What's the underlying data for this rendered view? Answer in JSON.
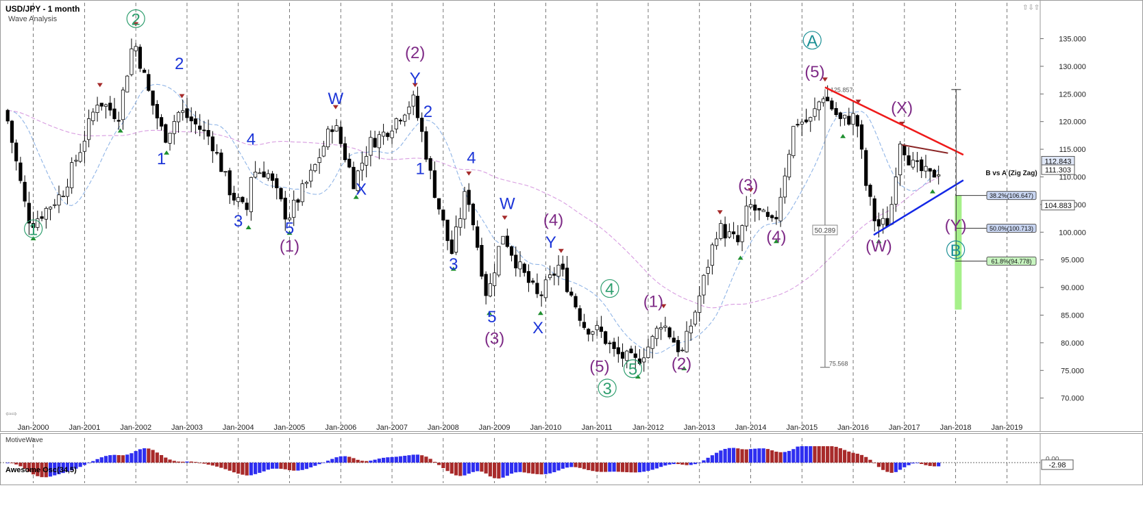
{
  "header": {
    "title": "USD/JPY - 1 month",
    "subtitle": "Wave Analysis",
    "oscillator_title": "Awesome Osc(34,5)",
    "brand": "MotiveWave"
  },
  "colors": {
    "bull_candle": "#ffffff",
    "bear_candle": "#000000",
    "ma_fast": "#8fb4e6",
    "ma_slow": "#d79be0",
    "ma_dash": "#c7b98a",
    "wave_blue": "#1c35d8",
    "wave_purple": "#7e2a86",
    "wave_green": "#2e9e6e",
    "wave_teal": "#1a8f94",
    "trend_red": "#ee1b1b",
    "trend_blue": "#1428e6",
    "trend_darkred": "#8a2525",
    "osc_up": "#2e2ef0",
    "osc_down": "#a82a2a",
    "target_zone": "#a6f08a"
  },
  "chart_data": {
    "type": "candlestick",
    "title": "USD/JPY - 1 month",
    "ylim": [
      66,
      141
    ],
    "y_ticks": [
      "135.000",
      "130.000",
      "125.000",
      "120.000",
      "115.000",
      "110.000",
      "105.000",
      "100.000",
      "95.000",
      "90.000",
      "85.000",
      "80.000",
      "75.000",
      "70.000"
    ],
    "x_ticks": [
      "Jan-2000",
      "Jan-2001",
      "Jan-2002",
      "Jan-2003",
      "Jan-2004",
      "Jan-2005",
      "Jan-2006",
      "Jan-2007",
      "Jan-2008",
      "Jan-2009",
      "Jan-2010",
      "Jan-2011",
      "Jan-2012",
      "Jan-2013",
      "Jan-2014",
      "Jan-2015",
      "Jan-2016",
      "Jan-2017",
      "Jan-2018",
      "Jan-2019"
    ],
    "price_path": [
      [
        1999.5,
        122
      ],
      [
        1999.9,
        104
      ],
      [
        2000.0,
        101.5
      ],
      [
        2000.6,
        107
      ],
      [
        2001.0,
        116
      ],
      [
        2001.3,
        124
      ],
      [
        2001.7,
        121
      ],
      [
        2002.0,
        135
      ],
      [
        2002.3,
        125
      ],
      [
        2002.6,
        117
      ],
      [
        2002.9,
        122
      ],
      [
        2003.5,
        117
      ],
      [
        2003.9,
        107
      ],
      [
        2004.2,
        103.5
      ],
      [
        2004.3,
        111
      ],
      [
        2004.6,
        111
      ],
      [
        2005.0,
        102.5
      ],
      [
        2005.5,
        111
      ],
      [
        2005.9,
        120
      ],
      [
        2006.3,
        109
      ],
      [
        2006.6,
        116
      ],
      [
        2006.9,
        118
      ],
      [
        2007.45,
        124
      ],
      [
        2007.65,
        117
      ],
      [
        2007.8,
        110
      ],
      [
        2008.2,
        96
      ],
      [
        2008.5,
        108
      ],
      [
        2008.9,
        88
      ],
      [
        2009.2,
        100
      ],
      [
        2009.5,
        94
      ],
      [
        2009.9,
        88
      ],
      [
        2010.3,
        94
      ],
      [
        2010.8,
        83
      ],
      [
        2011.1,
        82
      ],
      [
        2011.4,
        78
      ],
      [
        2011.8,
        76.5
      ],
      [
        2012.1,
        80
      ],
      [
        2012.3,
        84
      ],
      [
        2012.7,
        78
      ],
      [
        2013.0,
        87
      ],
      [
        2013.4,
        101
      ],
      [
        2013.8,
        98
      ],
      [
        2014.0,
        105
      ],
      [
        2014.5,
        101
      ],
      [
        2014.9,
        120
      ],
      [
        2015.2,
        120
      ],
      [
        2015.45,
        125
      ],
      [
        2015.8,
        120
      ],
      [
        2016.1,
        121
      ],
      [
        2016.3,
        108
      ],
      [
        2016.5,
        101
      ],
      [
        2016.75,
        102
      ],
      [
        2016.95,
        117
      ],
      [
        2017.2,
        112
      ],
      [
        2017.55,
        110
      ],
      [
        2017.7,
        111.3
      ]
    ],
    "price_labels": {
      "current_price": "112.843",
      "last_close": "111.303",
      "level_right": "104.883",
      "fib_382": "38.2%(106.647)",
      "fib_500": "50.0%(100.713)",
      "fib_618": "61.8%(94.778)",
      "fib_title": "B vs A (Zig Zag)",
      "peak_label": "125.857",
      "range_label": "50.289",
      "low_label": "75.568"
    },
    "fib_levels": [
      106.647,
      100.713,
      94.778
    ],
    "measure": {
      "x": 2015.45,
      "top": 125.857,
      "bottom": 75.568
    },
    "wave_labels": [
      {
        "text": "2",
        "t": 2002.0,
        "v": 137.5,
        "color": "green",
        "circle": true
      },
      {
        "text": "1",
        "t": 2000.0,
        "v": 99.5,
        "color": "green",
        "circle": true
      },
      {
        "text": "2",
        "t": 2002.85,
        "v": 129.5,
        "color": "blue"
      },
      {
        "text": "1",
        "t": 2002.5,
        "v": 112.3,
        "color": "blue"
      },
      {
        "text": "4",
        "t": 2004.25,
        "v": 115.8,
        "color": "blue"
      },
      {
        "text": "3",
        "t": 2004.0,
        "v": 101.0,
        "color": "blue"
      },
      {
        "text": "5",
        "t": 2005.0,
        "v": 99.7,
        "color": "blue"
      },
      {
        "text": "(1)",
        "t": 2005.0,
        "v": 96.5,
        "color": "purple"
      },
      {
        "text": "W",
        "t": 2005.9,
        "v": 123.2,
        "color": "blue"
      },
      {
        "text": "X",
        "t": 2006.4,
        "v": 106.8,
        "color": "blue"
      },
      {
        "text": "(2)",
        "t": 2007.45,
        "v": 131.5,
        "color": "purple"
      },
      {
        "text": "Y",
        "t": 2007.45,
        "v": 126.8,
        "color": "blue"
      },
      {
        "text": "2",
        "t": 2007.7,
        "v": 120.8,
        "color": "blue"
      },
      {
        "text": "1",
        "t": 2007.55,
        "v": 110.5,
        "color": "blue"
      },
      {
        "text": "4",
        "t": 2008.55,
        "v": 112.5,
        "color": "blue"
      },
      {
        "text": "3",
        "t": 2008.2,
        "v": 93.2,
        "color": "blue"
      },
      {
        "text": "W",
        "t": 2009.25,
        "v": 104.2,
        "color": "blue"
      },
      {
        "text": "5",
        "t": 2008.95,
        "v": 83.7,
        "color": "blue"
      },
      {
        "text": "(3)",
        "t": 2009.0,
        "v": 79.8,
        "color": "purple"
      },
      {
        "text": "(4)",
        "t": 2010.15,
        "v": 101.2,
        "color": "purple"
      },
      {
        "text": "Y",
        "t": 2010.1,
        "v": 97.2,
        "color": "blue"
      },
      {
        "text": "X",
        "t": 2009.85,
        "v": 81.7,
        "color": "blue"
      },
      {
        "text": "4",
        "t": 2011.25,
        "v": 88.7,
        "color": "green",
        "circle": true
      },
      {
        "text": "(5)",
        "t": 2011.05,
        "v": 74.7,
        "color": "purple"
      },
      {
        "text": "3",
        "t": 2011.2,
        "v": 70.7,
        "color": "green",
        "circle": true
      },
      {
        "text": "5",
        "t": 2011.7,
        "v": 74.2,
        "color": "green",
        "circle": true
      },
      {
        "text": "(1)",
        "t": 2012.1,
        "v": 86.5,
        "color": "purple"
      },
      {
        "text": "(2)",
        "t": 2012.65,
        "v": 75.2,
        "color": "purple"
      },
      {
        "text": "(3)",
        "t": 2013.95,
        "v": 107.5,
        "color": "purple"
      },
      {
        "text": "(4)",
        "t": 2014.5,
        "v": 98.2,
        "color": "purple"
      },
      {
        "text": "A",
        "t": 2015.2,
        "v": 133.6,
        "color": "teal",
        "circle": true
      },
      {
        "text": "(5)",
        "t": 2015.25,
        "v": 128.0,
        "color": "purple"
      },
      {
        "text": "(X)",
        "t": 2016.95,
        "v": 121.5,
        "color": "purple"
      },
      {
        "text": "(W)",
        "t": 2016.5,
        "v": 96.5,
        "color": "purple"
      },
      {
        "text": "(Y)",
        "t": 2018.0,
        "v": 100.2,
        "color": "purple"
      },
      {
        "text": "B",
        "t": 2018.0,
        "v": 95.7,
        "color": "teal",
        "circle": true
      }
    ],
    "trendlines": [
      {
        "color": "red",
        "from": [
          2015.45,
          126.2
        ],
        "to": [
          2018.15,
          114.0
        ]
      },
      {
        "color": "blue",
        "from": [
          2016.4,
          99.5
        ],
        "to": [
          2018.15,
          109.4
        ]
      },
      {
        "color": "darkred",
        "from": [
          2016.95,
          115.8
        ],
        "to": [
          2017.85,
          114.3
        ]
      }
    ],
    "oscillator": {
      "label": "-2.98",
      "zero": "0.00"
    },
    "grid": true
  }
}
